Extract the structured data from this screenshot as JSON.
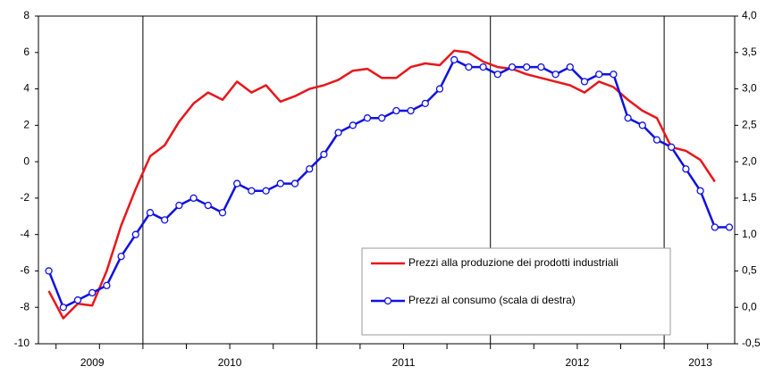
{
  "chart_data": {
    "type": "line",
    "categories": [
      null,
      null,
      null,
      null,
      null,
      null,
      null,
      null,
      null,
      null,
      null,
      null,
      null,
      null,
      null,
      null,
      null,
      null,
      null,
      null,
      null,
      null,
      null,
      null,
      null,
      null,
      null,
      null,
      null,
      null,
      null,
      null,
      null,
      null,
      null,
      null,
      null,
      null,
      null,
      null,
      null,
      null,
      null,
      null,
      null,
      null,
      null,
      null
    ],
    "year_labels": [
      "2009",
      "2010",
      "2011",
      "2012",
      "2013"
    ],
    "series": [
      {
        "name": "Prezzi alla produzione dei prodotti industriali",
        "color": "#e8161b",
        "axis": "y",
        "marker": false,
        "values": [
          -7.1,
          -8.6,
          -7.8,
          -7.9,
          -6.0,
          -3.5,
          -1.5,
          0.3,
          0.9,
          2.2,
          3.2,
          3.8,
          3.4,
          4.4,
          3.8,
          4.2,
          3.3,
          3.6,
          4.0,
          4.2,
          4.5,
          5.0,
          5.1,
          4.6,
          4.6,
          5.2,
          5.4,
          5.3,
          6.1,
          6.0,
          5.5,
          5.2,
          5.1,
          4.8,
          4.6,
          4.4,
          4.2,
          3.8,
          4.4,
          4.1,
          3.4,
          2.8,
          2.4,
          0.8,
          0.6,
          0.1,
          -1.1,
          null
        ]
      },
      {
        "name": "Prezzi al consumo (scala di destra)",
        "color": "#1010e0",
        "axis": "y2",
        "marker": true,
        "values": [
          0.5,
          0.0,
          0.1,
          0.2,
          0.3,
          0.7,
          1.0,
          1.3,
          1.2,
          1.4,
          1.5,
          1.4,
          1.3,
          1.7,
          1.6,
          1.6,
          1.7,
          1.7,
          1.9,
          2.1,
          2.4,
          2.5,
          2.6,
          2.6,
          2.7,
          2.7,
          2.8,
          3.0,
          3.4,
          3.3,
          3.3,
          3.2,
          3.3,
          3.3,
          3.3,
          3.2,
          3.3,
          3.1,
          3.2,
          3.2,
          2.6,
          2.5,
          2.3,
          2.2,
          1.9,
          1.6,
          1.1,
          1.1
        ]
      }
    ],
    "ylim": [
      -10,
      8
    ],
    "yticks": [
      -10,
      -8,
      -6,
      -4,
      -2,
      0,
      2,
      4,
      6,
      8
    ],
    "y2lim": [
      -0.5,
      4.0
    ],
    "y2ticks": [
      {
        "value": -0.5,
        "label": "-0,5"
      },
      {
        "value": 0.0,
        "label": "0,0"
      },
      {
        "value": 0.5,
        "label": "0,5"
      },
      {
        "value": 1.0,
        "label": "1,0"
      },
      {
        "value": 1.5,
        "label": "1,5"
      },
      {
        "value": 2.0,
        "label": "2,0"
      },
      {
        "value": 2.5,
        "label": "2,5"
      },
      {
        "value": 3.0,
        "label": "3,0"
      },
      {
        "value": 3.5,
        "label": "3,5"
      },
      {
        "value": 4.0,
        "label": "4,0"
      }
    ],
    "grid": false,
    "legend": "lower right"
  }
}
